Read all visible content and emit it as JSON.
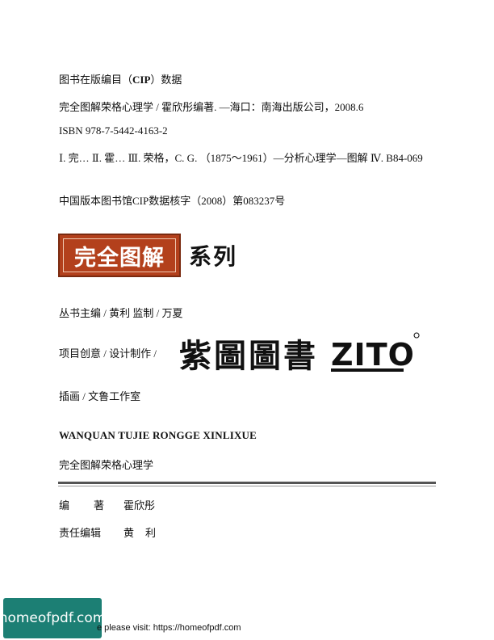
{
  "cip": {
    "heading_pre": "图书在版编目（",
    "heading_bold": "CIP",
    "heading_post": "）数据",
    "catalog_entry": "完全图解荣格心理学 / 霍欣彤编著. —海口：南海出版公司，2008.6",
    "isbn": "ISBN 978-7-5442-4163-2",
    "subjects": "Ⅰ. 完… Ⅱ. 霍… Ⅲ. 荣格，C. G. （1875～1961）—分析心理学—图解 Ⅳ. B84-069",
    "library_record": "中国版本图书馆CIP数据核字（2008）第083237号"
  },
  "series": {
    "badge": "完全图解",
    "suffix": "系列"
  },
  "credits": {
    "series_editor": "丛书主编 / 黄利    监制 / 万夏",
    "design_label": "项目创意 / 设计制作 /",
    "design_logo_cn": "紫圖圖書",
    "design_logo_en": "ZITO",
    "illustration": "插画 / 文鲁工作室"
  },
  "book": {
    "title_pinyin": "WANQUAN TUJIE RONGGE XINLIXUE",
    "title_cn": "完全图解荣格心理学"
  },
  "staff": {
    "author_label": "编著",
    "author_name": "霍欣彤",
    "editor_label": "责任编辑",
    "editor_name": "黄利"
  },
  "watermark": {
    "badge": "homeofpdf.com",
    "text": "e please visit: https://homeofpdf.com"
  },
  "colors": {
    "badge_bg": "#b3401c",
    "watermark_bg": "#1c7f74"
  }
}
